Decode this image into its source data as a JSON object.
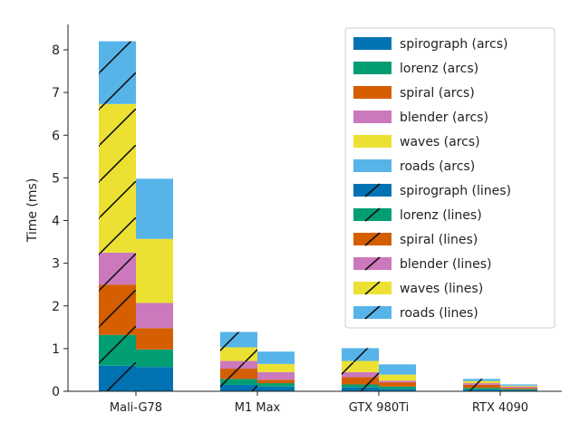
{
  "chart_data": {
    "type": "bar",
    "stacked": true,
    "title": "",
    "xlabel": "",
    "ylabel": "Time (ms)",
    "ylim": [
      0,
      8.6
    ],
    "yticks": [
      0,
      1,
      2,
      3,
      4,
      5,
      6,
      7,
      8
    ],
    "grid": false,
    "legend_position": "top-right",
    "categories": [
      "Mali-G78",
      "M1 Max",
      "GTX 980Ti",
      "RTX 4090"
    ],
    "groups": [
      "lines",
      "arcs"
    ],
    "hatched_group": "lines",
    "components": [
      "spirograph",
      "lorenz",
      "spiral",
      "blender",
      "waves",
      "roads"
    ],
    "colors": {
      "spirograph": "#0173b2",
      "lorenz": "#029e73",
      "spiral": "#d55e00",
      "blender": "#cc78bc",
      "waves": "#ece133",
      "roads": "#56b4e9"
    },
    "series": [
      {
        "name": "spirograph (arcs)",
        "component": "spirograph",
        "group": "arcs",
        "values": [
          0.57,
          0.11,
          0.05,
          0.03
        ]
      },
      {
        "name": "lorenz (arcs)",
        "component": "lorenz",
        "group": "arcs",
        "values": [
          0.41,
          0.08,
          0.06,
          0.02
        ]
      },
      {
        "name": "spiral (arcs)",
        "component": "spiral",
        "group": "arcs",
        "values": [
          0.5,
          0.08,
          0.1,
          0.03
        ]
      },
      {
        "name": "blender (arcs)",
        "component": "blender",
        "group": "arcs",
        "values": [
          0.59,
          0.18,
          0.04,
          0.03
        ]
      },
      {
        "name": "waves (arcs)",
        "component": "waves",
        "group": "arcs",
        "values": [
          1.5,
          0.19,
          0.14,
          0.02
        ]
      },
      {
        "name": "roads (arcs)",
        "component": "roads",
        "group": "arcs",
        "values": [
          1.41,
          0.29,
          0.24,
          0.03
        ]
      },
      {
        "name": "spirograph (lines)",
        "component": "spirograph",
        "group": "lines",
        "values": [
          0.6,
          0.15,
          0.09,
          0.04
        ]
      },
      {
        "name": "lorenz (lines)",
        "component": "lorenz",
        "group": "lines",
        "values": [
          0.72,
          0.14,
          0.07,
          0.04
        ]
      },
      {
        "name": "spiral (lines)",
        "component": "spiral",
        "group": "lines",
        "values": [
          1.18,
          0.24,
          0.17,
          0.07
        ]
      },
      {
        "name": "blender (lines)",
        "component": "blender",
        "group": "lines",
        "values": [
          0.75,
          0.18,
          0.12,
          0.04
        ]
      },
      {
        "name": "waves (lines)",
        "component": "waves",
        "group": "lines",
        "values": [
          3.48,
          0.32,
          0.26,
          0.05
        ]
      },
      {
        "name": "roads (lines)",
        "component": "roads",
        "group": "lines",
        "values": [
          1.47,
          0.36,
          0.3,
          0.05
        ]
      }
    ]
  }
}
